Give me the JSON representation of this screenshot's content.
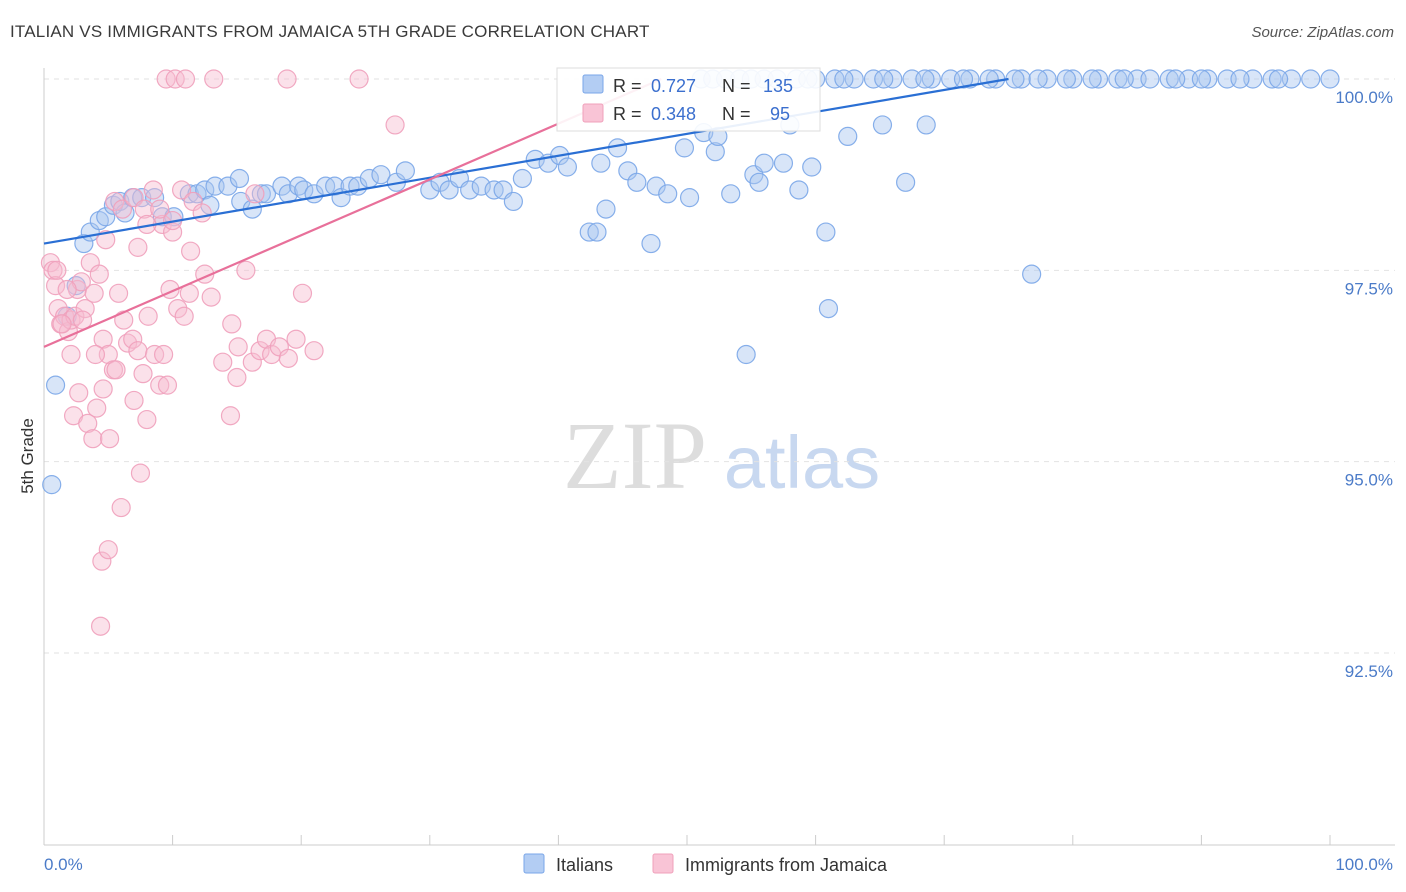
{
  "header": {
    "title": "ITALIAN VS IMMIGRANTS FROM JAMAICA 5TH GRADE CORRELATION CHART",
    "source": "Source: ZipAtlas.com"
  },
  "watermark": {
    "zip": "ZIP",
    "atlas": "atlas"
  },
  "chart_data": {
    "type": "scatter",
    "title": "ITALIAN VS IMMIGRANTS FROM JAMAICA 5TH GRADE CORRELATION CHART",
    "xlabel": "",
    "ylabel": "5th Grade",
    "xlim": [
      0,
      100
    ],
    "ylim": [
      90.9,
      100.5
    ],
    "x_tick_labels": [
      "0.0%",
      "100.0%"
    ],
    "y_ticks": [
      92.5,
      95.0,
      97.5,
      100.0
    ],
    "y_tick_labels": [
      "92.5%",
      "95.0%",
      "97.5%",
      "100.0%"
    ],
    "grid": true,
    "legend_position": "bottom-center",
    "colors": {
      "italians": "#7aa6e8",
      "jamaica": "#f0a0bb",
      "italians_line": "#2a6fd4",
      "jamaica_line": "#e8709a",
      "tick_text": "#4b7bc8"
    },
    "stats": [
      {
        "r_label": "R =",
        "r": "0.727",
        "n_label": "N =",
        "n": "135"
      },
      {
        "r_label": "R =",
        "r": "0.348",
        "n_label": "N =",
        "n": "95"
      }
    ],
    "series": [
      {
        "name": "Italians",
        "trend": {
          "x": [
            0,
            75
          ],
          "y": [
            97.85,
            100.0
          ]
        },
        "points": [
          [
            0.6,
            94.7
          ],
          [
            0.9,
            96.0
          ],
          [
            1.8,
            96.9
          ],
          [
            2.5,
            97.3
          ],
          [
            3.1,
            97.85
          ],
          [
            3.6,
            98.0
          ],
          [
            4.3,
            98.15
          ],
          [
            4.8,
            98.2
          ],
          [
            5.4,
            98.35
          ],
          [
            5.9,
            98.4
          ],
          [
            6.3,
            98.25
          ],
          [
            6.9,
            98.45
          ],
          [
            7.6,
            98.45
          ],
          [
            8.6,
            98.45
          ],
          [
            9.2,
            98.2
          ],
          [
            10.1,
            98.2
          ],
          [
            11.3,
            98.5
          ],
          [
            11.9,
            98.5
          ],
          [
            12.5,
            98.55
          ],
          [
            12.9,
            98.35
          ],
          [
            13.3,
            98.6
          ],
          [
            14.3,
            98.6
          ],
          [
            15.3,
            98.4
          ],
          [
            16.2,
            98.3
          ],
          [
            15.2,
            98.7
          ],
          [
            16.9,
            98.5
          ],
          [
            17.3,
            98.5
          ],
          [
            18.5,
            98.6
          ],
          [
            19.0,
            98.5
          ],
          [
            19.8,
            98.6
          ],
          [
            20.2,
            98.55
          ],
          [
            21.0,
            98.5
          ],
          [
            21.9,
            98.6
          ],
          [
            22.6,
            98.6
          ],
          [
            23.1,
            98.45
          ],
          [
            23.8,
            98.6
          ],
          [
            24.4,
            98.6
          ],
          [
            25.3,
            98.7
          ],
          [
            26.2,
            98.75
          ],
          [
            27.4,
            98.65
          ],
          [
            28.1,
            98.8
          ],
          [
            30.0,
            98.55
          ],
          [
            30.8,
            98.65
          ],
          [
            31.5,
            98.55
          ],
          [
            32.3,
            98.7
          ],
          [
            33.1,
            98.55
          ],
          [
            34.0,
            98.6
          ],
          [
            35.0,
            98.55
          ],
          [
            35.7,
            98.55
          ],
          [
            36.5,
            98.4
          ],
          [
            37.2,
            98.7
          ],
          [
            38.2,
            98.95
          ],
          [
            39.2,
            98.9
          ],
          [
            40.1,
            99.0
          ],
          [
            40.7,
            98.85
          ],
          [
            42.4,
            98.0
          ],
          [
            43.0,
            98.0
          ],
          [
            43.3,
            98.9
          ],
          [
            43.7,
            98.3
          ],
          [
            44.6,
            99.1
          ],
          [
            45.4,
            98.8
          ],
          [
            46.1,
            98.65
          ],
          [
            47.2,
            97.85
          ],
          [
            47.6,
            98.6
          ],
          [
            48.5,
            98.5
          ],
          [
            49.8,
            99.1
          ],
          [
            50.2,
            98.45
          ],
          [
            51.3,
            99.3
          ],
          [
            52.2,
            99.05
          ],
          [
            52.4,
            99.25
          ],
          [
            53.4,
            98.5
          ],
          [
            54.6,
            96.4
          ],
          [
            55.2,
            98.75
          ],
          [
            55.6,
            98.65
          ],
          [
            56.0,
            98.9
          ],
          [
            57.5,
            98.9
          ],
          [
            58.0,
            99.4
          ],
          [
            58.7,
            98.55
          ],
          [
            59.7,
            98.85
          ],
          [
            60.8,
            98.0
          ],
          [
            61.0,
            97.0
          ],
          [
            62.5,
            99.25
          ],
          [
            65.2,
            99.4
          ],
          [
            67.0,
            98.65
          ],
          [
            68.6,
            99.4
          ],
          [
            76.8,
            97.45
          ],
          [
            51.1,
            100.0
          ],
          [
            52.0,
            100.0
          ],
          [
            53.0,
            100.0
          ],
          [
            54.1,
            100.0
          ],
          [
            55.0,
            100.0
          ],
          [
            56.0,
            100.0
          ],
          [
            57.0,
            100.0
          ],
          [
            58.5,
            100.0
          ],
          [
            60.0,
            100.0
          ],
          [
            61.5,
            100.0
          ],
          [
            63.0,
            100.0
          ],
          [
            64.5,
            100.0
          ],
          [
            66.0,
            100.0
          ],
          [
            67.5,
            100.0
          ],
          [
            69.0,
            100.0
          ],
          [
            70.5,
            100.0
          ],
          [
            72.0,
            100.0
          ],
          [
            74.0,
            100.0
          ],
          [
            76.0,
            100.0
          ],
          [
            78.0,
            100.0
          ],
          [
            80.0,
            100.0
          ],
          [
            82.0,
            100.0
          ],
          [
            83.5,
            100.0
          ],
          [
            85.0,
            100.0
          ],
          [
            87.5,
            100.0
          ],
          [
            89.0,
            100.0
          ],
          [
            90.5,
            100.0
          ],
          [
            92.0,
            100.0
          ],
          [
            94.0,
            100.0
          ],
          [
            95.5,
            100.0
          ],
          [
            97.0,
            100.0
          ],
          [
            100.0,
            100.0
          ],
          [
            59.4,
            100.0
          ],
          [
            62.2,
            100.0
          ],
          [
            65.3,
            100.0
          ],
          [
            68.5,
            100.0
          ],
          [
            71.5,
            100.0
          ],
          [
            73.5,
            100.0
          ],
          [
            75.5,
            100.0
          ],
          [
            77.3,
            100.0
          ],
          [
            79.5,
            100.0
          ],
          [
            81.5,
            100.0
          ],
          [
            84.0,
            100.0
          ],
          [
            86.0,
            100.0
          ],
          [
            88.0,
            100.0
          ],
          [
            90.0,
            100.0
          ],
          [
            93.0,
            100.0
          ],
          [
            96.0,
            100.0
          ],
          [
            98.5,
            100.0
          ]
        ]
      },
      {
        "name": "Immigrants from Jamaica",
        "trend": {
          "x": [
            0,
            48
          ],
          "y": [
            96.5,
            100.0
          ]
        },
        "points": [
          [
            0.5,
            97.6
          ],
          [
            0.7,
            97.5
          ],
          [
            0.9,
            97.3
          ],
          [
            1.1,
            97.0
          ],
          [
            1.3,
            96.8
          ],
          [
            1.6,
            96.9
          ],
          [
            1.9,
            96.7
          ],
          [
            2.1,
            96.85
          ],
          [
            2.4,
            96.9
          ],
          [
            2.6,
            97.25
          ],
          [
            2.9,
            97.35
          ],
          [
            3.2,
            97.0
          ],
          [
            3.6,
            97.6
          ],
          [
            3.9,
            97.2
          ],
          [
            4.3,
            97.45
          ],
          [
            4.6,
            96.6
          ],
          [
            5.0,
            96.4
          ],
          [
            5.4,
            96.2
          ],
          [
            5.8,
            97.2
          ],
          [
            6.2,
            96.85
          ],
          [
            6.5,
            96.55
          ],
          [
            6.9,
            96.6
          ],
          [
            7.3,
            96.45
          ],
          [
            7.7,
            96.15
          ],
          [
            8.1,
            96.9
          ],
          [
            8.6,
            96.4
          ],
          [
            9.0,
            96.0
          ],
          [
            9.3,
            96.4
          ],
          [
            9.8,
            97.25
          ],
          [
            10.4,
            97.0
          ],
          [
            10.9,
            96.9
          ],
          [
            11.3,
            97.2
          ],
          [
            12.5,
            97.45
          ],
          [
            13.0,
            97.15
          ],
          [
            13.9,
            96.3
          ],
          [
            14.6,
            96.8
          ],
          [
            15.1,
            96.5
          ],
          [
            15.7,
            97.5
          ],
          [
            16.2,
            96.3
          ],
          [
            16.8,
            96.45
          ],
          [
            17.3,
            96.6
          ],
          [
            17.7,
            96.4
          ],
          [
            18.3,
            96.5
          ],
          [
            19.0,
            96.35
          ],
          [
            19.6,
            96.6
          ],
          [
            20.1,
            97.2
          ],
          [
            21.0,
            96.45
          ],
          [
            1.0,
            97.5
          ],
          [
            1.8,
            97.25
          ],
          [
            2.3,
            95.6
          ],
          [
            2.7,
            95.9
          ],
          [
            3.4,
            95.5
          ],
          [
            3.8,
            95.3
          ],
          [
            4.1,
            95.7
          ],
          [
            4.6,
            95.95
          ],
          [
            5.1,
            95.3
          ],
          [
            5.6,
            96.2
          ],
          [
            6.0,
            94.4
          ],
          [
            7.0,
            95.8
          ],
          [
            7.5,
            94.85
          ],
          [
            8.0,
            95.55
          ],
          [
            9.6,
            96.0
          ],
          [
            11.4,
            97.75
          ],
          [
            14.5,
            95.6
          ],
          [
            15.0,
            96.1
          ],
          [
            16.4,
            98.5
          ],
          [
            4.8,
            97.9
          ],
          [
            5.5,
            98.4
          ],
          [
            6.1,
            98.3
          ],
          [
            7.0,
            98.45
          ],
          [
            7.8,
            98.3
          ],
          [
            8.5,
            98.55
          ],
          [
            9.2,
            98.1
          ],
          [
            10.0,
            98.0
          ],
          [
            10.7,
            98.55
          ],
          [
            11.6,
            98.4
          ],
          [
            12.3,
            98.25
          ],
          [
            8.0,
            98.1
          ],
          [
            9.0,
            98.3
          ],
          [
            10.0,
            98.15
          ],
          [
            3.0,
            96.85
          ],
          [
            4.0,
            96.4
          ],
          [
            4.5,
            93.7
          ],
          [
            5.0,
            93.85
          ],
          [
            4.4,
            92.85
          ],
          [
            9.5,
            100.0
          ],
          [
            10.2,
            100.0
          ],
          [
            11.0,
            100.0
          ],
          [
            13.2,
            100.0
          ],
          [
            18.9,
            100.0
          ],
          [
            24.5,
            100.0
          ],
          [
            27.3,
            99.4
          ],
          [
            7.3,
            97.8
          ],
          [
            2.1,
            96.4
          ],
          [
            1.4,
            96.8
          ]
        ]
      }
    ]
  },
  "legend": [
    {
      "label": "Italians"
    },
    {
      "label": "Immigrants from Jamaica"
    }
  ]
}
